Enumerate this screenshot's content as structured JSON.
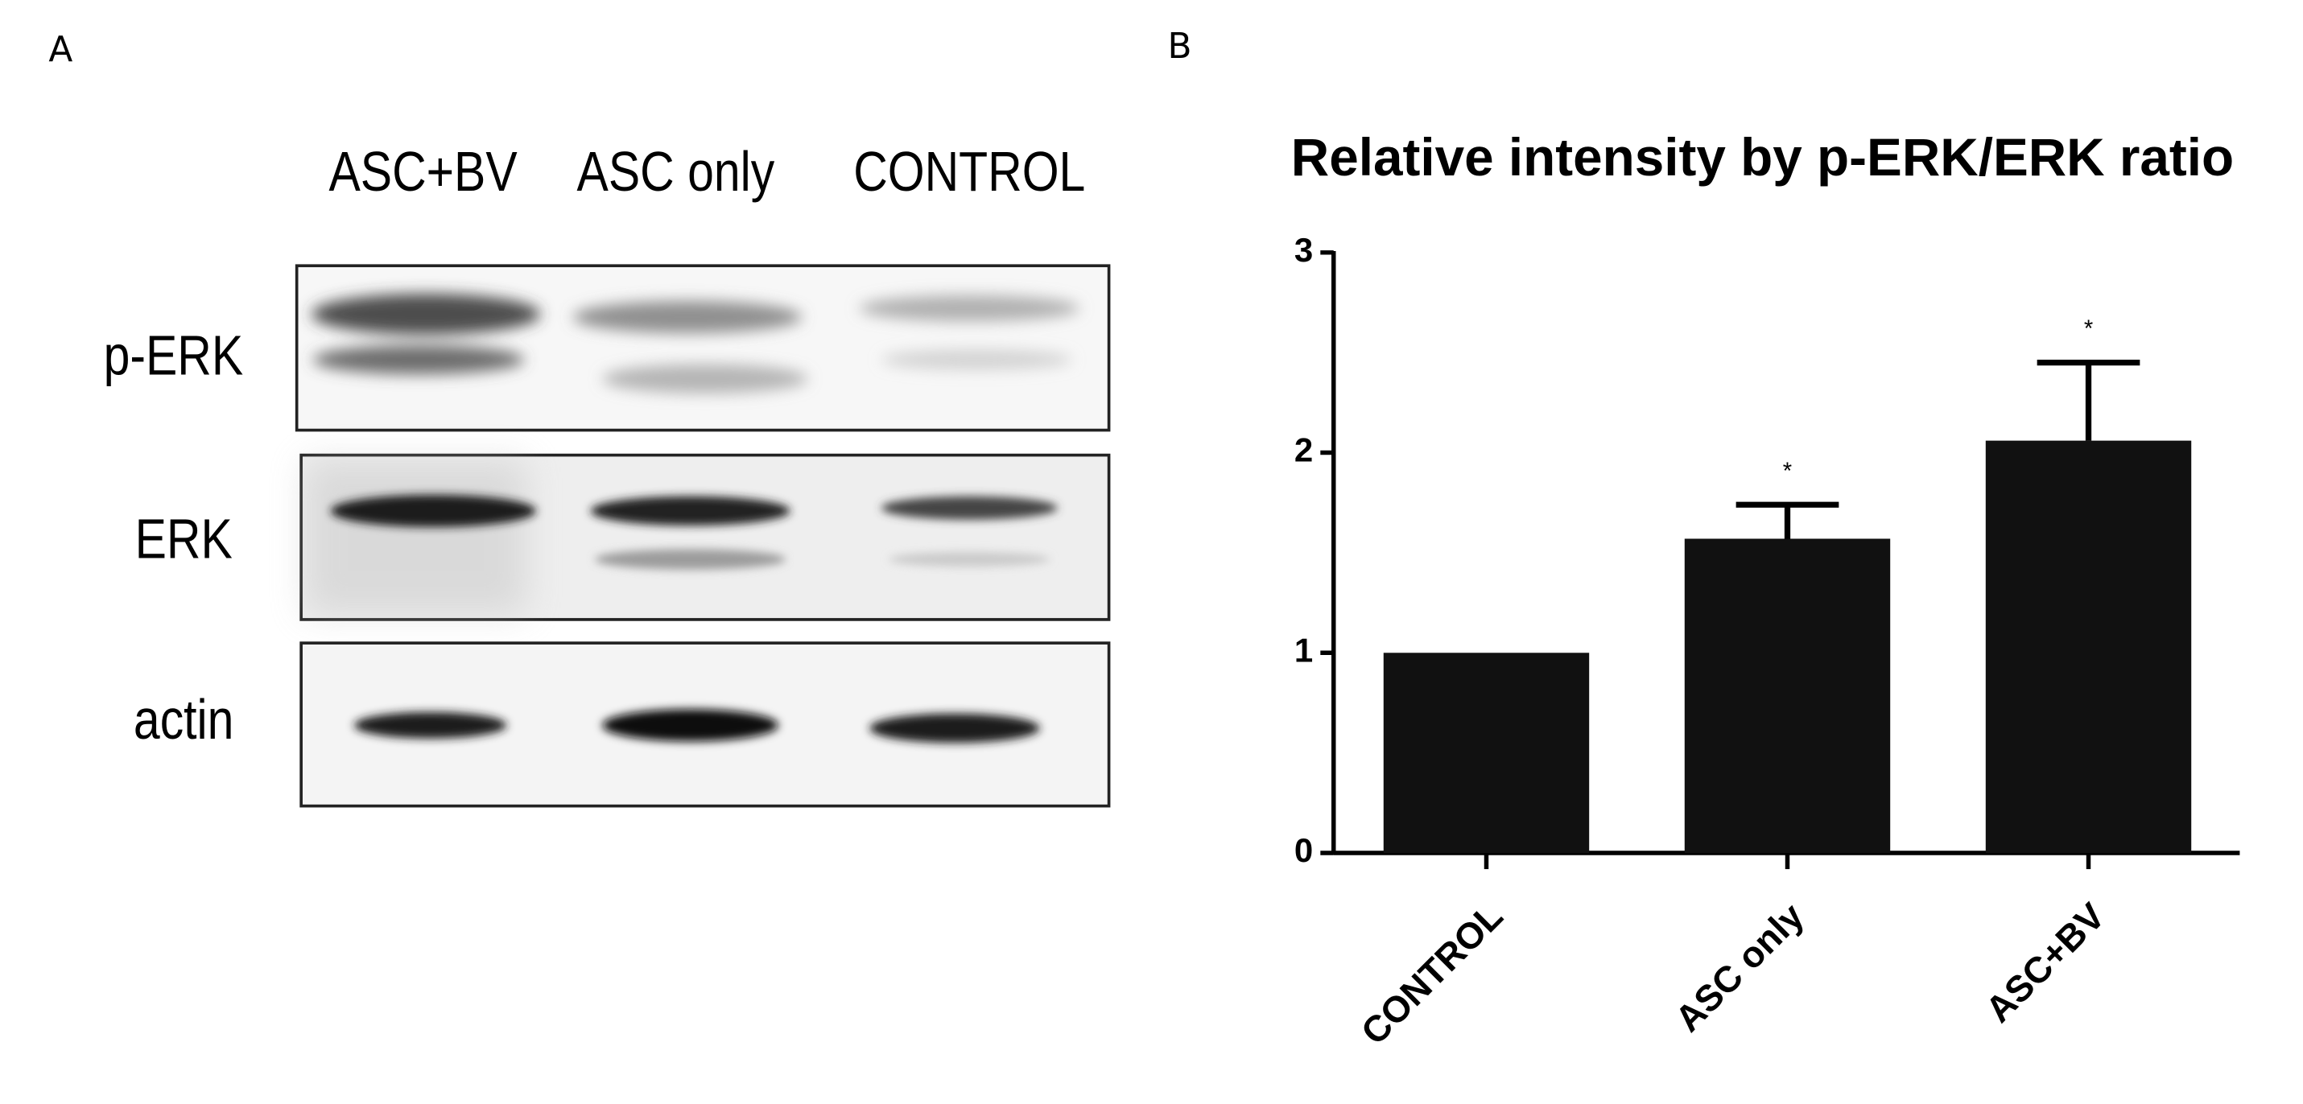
{
  "panels": {
    "left_label": "A",
    "right_label": "B"
  },
  "blot": {
    "lanes": [
      "ASC+BV",
      "ASC only",
      "CONTROL"
    ],
    "rows": [
      "p-ERK",
      "ERK",
      "actin"
    ]
  },
  "chart_data": {
    "type": "bar",
    "title": "Relative intensity by p-ERK/ERK ratio",
    "categories": [
      "CONTROL",
      "ASC only",
      "ASC+BV"
    ],
    "series": [
      {
        "color": "#111111",
        "values": [
          1.0,
          1.57,
          2.06
        ],
        "errors": [
          0,
          0.17,
          0.39
        ],
        "markers": [
          null,
          "*",
          "*"
        ]
      }
    ],
    "ylim": [
      0,
      3
    ],
    "yticks": [
      0,
      1,
      2,
      3
    ]
  }
}
